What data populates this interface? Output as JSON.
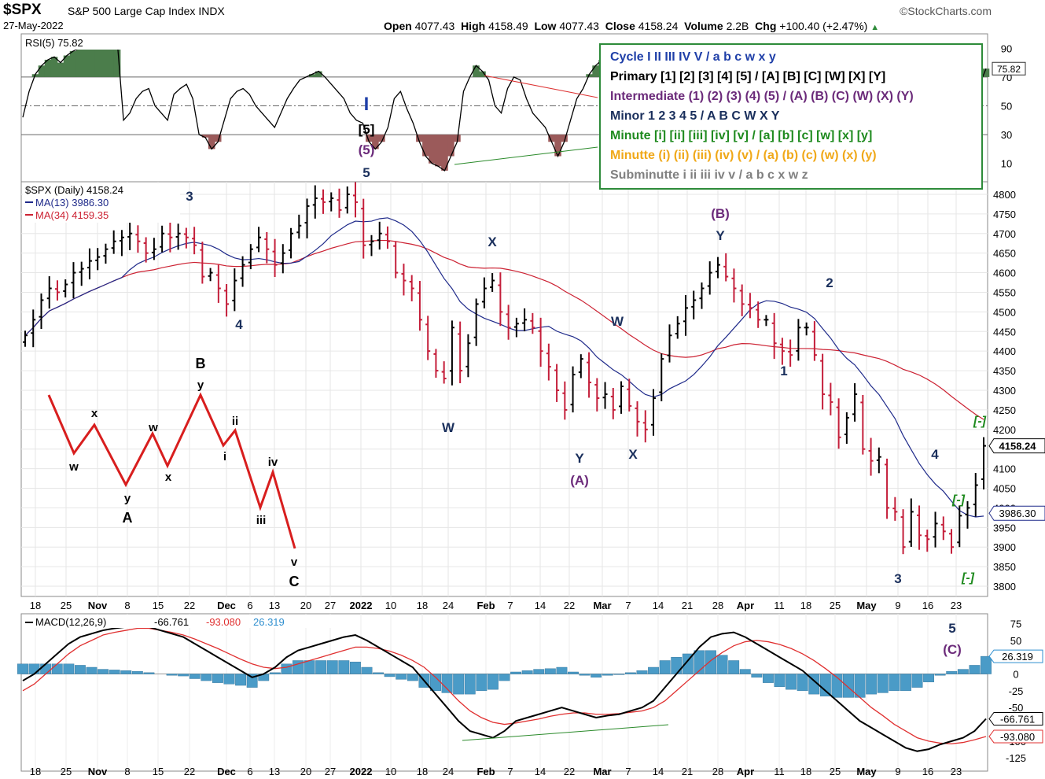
{
  "header": {
    "symbol": "$SPX",
    "name": "S&P 500 Large Cap Index",
    "exchange": "INDX",
    "date": "27-May-2022",
    "watermark": "©StockCharts.com",
    "open_label": "Open",
    "open": "4077.43",
    "high_label": "High",
    "high": "4158.49",
    "low_label": "Low",
    "low": "4077.43",
    "close_label": "Close",
    "close": "4158.24",
    "volume_label": "Volume",
    "volume": "2.2B",
    "chg_label": "Chg",
    "chg": "+100.40 (+2.47%)"
  },
  "legend": [
    {
      "text": "Cycle I II III IV V / a b c w x y",
      "color": "#1f3fa8"
    },
    {
      "text": "Primary [1] [2] [3] [4] [5] / [A] [B] [C] [W] [X] [Y]",
      "color": "#000000"
    },
    {
      "text": "Intermediate (1) (2) (3) (4) (5) / (A) (B) (C) (W) (X) (Y)",
      "color": "#6b2a7a"
    },
    {
      "text": "Minor 1 2 3 4 5 / A B C W X Y",
      "color": "#1a2f5c"
    },
    {
      "text": "Minute [i] [ii] [iii] [iv] [v] / [a] [b] [c] [w] [x] [y]",
      "color": "#1e8a1e"
    },
    {
      "text": "Minutte (i) (ii) (iii) (iv) (v) / (a) (b) (c) (w) (x) (y)",
      "color": "#f0a818"
    },
    {
      "text": "Subminutte i ii iii iv v / a b c x w z",
      "color": "#808080"
    }
  ],
  "chart_data": [
    {
      "type": "line",
      "panel": "RSI",
      "label": "RSI(5) 75.82",
      "last_value": "75.82",
      "ylim": [
        0,
        100
      ],
      "y_ticks": [
        "10",
        "30",
        "50",
        "70",
        "90"
      ],
      "reference_lines": [
        30,
        50,
        70
      ],
      "values": [
        42,
        60,
        72,
        78,
        82,
        84,
        80,
        85,
        88,
        90,
        92,
        95,
        96,
        97,
        96,
        95,
        40,
        45,
        55,
        60,
        62,
        50,
        45,
        40,
        58,
        62,
        65,
        55,
        30,
        28,
        20,
        25,
        40,
        55,
        60,
        62,
        58,
        50,
        45,
        40,
        35,
        45,
        55,
        62,
        68,
        70,
        72,
        74,
        70,
        65,
        60,
        55,
        45,
        40,
        38,
        25,
        20,
        25,
        35,
        55,
        60,
        48,
        38,
        25,
        15,
        10,
        8,
        5,
        15,
        25,
        60,
        70,
        78,
        74,
        68,
        50,
        45,
        62,
        70,
        68,
        55,
        45,
        40,
        35,
        25,
        15,
        25,
        40,
        55,
        62,
        72,
        78,
        82,
        84,
        86,
        88,
        90,
        85,
        80,
        75,
        70,
        60,
        55,
        45,
        35,
        30,
        25,
        20,
        30,
        40,
        55,
        62,
        68,
        72,
        65,
        58,
        55,
        45,
        40,
        35,
        30,
        28,
        35,
        45,
        55,
        60,
        62,
        58,
        55,
        50,
        45,
        50,
        55,
        58,
        60,
        62,
        58,
        55,
        50,
        45,
        40,
        35,
        30,
        28,
        35,
        40,
        38,
        35,
        32,
        30,
        40,
        55,
        65,
        75.82
      ]
    },
    {
      "type": "ohlc",
      "panel": "price",
      "label": "$SPX (Daily) 4158.24",
      "last_value": "4158.24",
      "ylim": [
        3780,
        4830
      ],
      "y_ticks": [
        "3800",
        "3850",
        "3900",
        "3950",
        "4000",
        "4050",
        "4100",
        "4150",
        "4200",
        "4250",
        "4300",
        "4350",
        "4400",
        "4450",
        "4500",
        "4550",
        "4600",
        "4650",
        "4700",
        "4750",
        "4800"
      ],
      "x_tick_labels": [
        "18",
        "25",
        "Nov",
        "8",
        "15",
        "22",
        "Dec",
        "6",
        "13",
        "20",
        "27",
        "2022",
        "10",
        "18",
        "24",
        "Feb",
        "7",
        "14",
        "22",
        "Mar",
        "7",
        "14",
        "21",
        "28",
        "Apr",
        "11",
        "18",
        "25",
        "May",
        "9",
        "16",
        "23"
      ],
      "close": [
        4440,
        4480,
        4530,
        4560,
        4550,
        4570,
        4600,
        4610,
        4630,
        4640,
        4660,
        4680,
        4690,
        4700,
        4680,
        4650,
        4660,
        4700,
        4690,
        4700,
        4690,
        4670,
        4590,
        4600,
        4560,
        4520,
        4580,
        4620,
        4660,
        4690,
        4660,
        4620,
        4650,
        4700,
        4720,
        4770,
        4790,
        4780,
        4790,
        4760,
        4800,
        4780,
        4670,
        4680,
        4700,
        4680,
        4600,
        4580,
        4560,
        4480,
        4400,
        4350,
        4330,
        4460,
        4350,
        4420,
        4520,
        4560,
        4580,
        4500,
        4460,
        4470,
        4480,
        4460,
        4400,
        4360,
        4300,
        4250,
        4340,
        4380,
        4320,
        4280,
        4290,
        4250,
        4310,
        4260,
        4220,
        4200,
        4280,
        4380,
        4440,
        4470,
        4510,
        4530,
        4560,
        4600,
        4620,
        4590,
        4560,
        4520,
        4510,
        4480,
        4480,
        4420,
        4400,
        4390,
        4460,
        4460,
        4390,
        4290,
        4270,
        4180,
        4230,
        4290,
        4150,
        4120,
        4130,
        4000,
        3990,
        3900,
        3990,
        3930,
        3920,
        3960,
        3940,
        3900,
        3980,
        4000,
        4058,
        4158.24
      ],
      "ma13": {
        "label": "MA(13) 3986.30",
        "last_value": "3986.30",
        "color": "#1f2a8a"
      },
      "ma34": {
        "label": "MA(34) 4159.35",
        "last_value": "4159.35",
        "color": "#cc2233"
      }
    },
    {
      "type": "line",
      "panel": "MACD",
      "label": "MACD(12,26,9)",
      "macd_value": "-66.761",
      "signal_value": "-93.080",
      "hist_value": "26.319",
      "ylim": [
        -140,
        85
      ],
      "y_ticks": [
        "75",
        "50",
        "25",
        "0",
        "-25",
        "-50",
        "-100",
        "-125"
      ],
      "macd": [
        -10,
        0,
        15,
        30,
        45,
        55,
        60,
        65,
        68,
        70,
        72,
        70,
        65,
        60,
        55,
        45,
        35,
        25,
        15,
        5,
        -5,
        0,
        10,
        25,
        35,
        40,
        45,
        50,
        55,
        58,
        50,
        40,
        30,
        20,
        10,
        -10,
        -30,
        -50,
        -70,
        -85,
        -90,
        -95,
        -85,
        -70,
        -65,
        -60,
        -55,
        -50,
        -55,
        -60,
        -65,
        -62,
        -60,
        -55,
        -50,
        -40,
        -20,
        0,
        20,
        40,
        55,
        60,
        62,
        55,
        45,
        35,
        25,
        15,
        5,
        -10,
        -25,
        -40,
        -55,
        -70,
        -80,
        -90,
        -100,
        -110,
        -115,
        -112,
        -105,
        -100,
        -95,
        -85,
        -66.761
      ],
      "signal": [
        -25,
        -15,
        0,
        15,
        30,
        42,
        50,
        58,
        62,
        65,
        68,
        68,
        65,
        62,
        58,
        52,
        45,
        38,
        30,
        22,
        15,
        10,
        8,
        10,
        15,
        20,
        25,
        30,
        35,
        40,
        40,
        38,
        34,
        28,
        20,
        10,
        -5,
        -22,
        -40,
        -55,
        -65,
        -72,
        -75,
        -73,
        -70,
        -67,
        -63,
        -60,
        -58,
        -58,
        -60,
        -60,
        -59,
        -57,
        -55,
        -50,
        -40,
        -25,
        -10,
        5,
        20,
        32,
        42,
        48,
        50,
        48,
        44,
        38,
        30,
        20,
        8,
        -5,
        -20,
        -35,
        -50,
        -62,
        -75,
        -85,
        -95,
        -100,
        -103,
        -104,
        -102,
        -98,
        -93.08
      ]
    }
  ],
  "annotations": {
    "wave_labels": [
      {
        "text": "I",
        "color": "#1f3fa8"
      },
      {
        "text": "[5]",
        "color": "#000000"
      },
      {
        "text": "(5)",
        "color": "#6b2a7a"
      },
      {
        "text": "5",
        "color": "#1a2f5c"
      },
      {
        "text": "3",
        "color": "#1a2f5c"
      },
      {
        "text": "4",
        "color": "#1a2f5c"
      },
      {
        "text": "W",
        "color": "#1a2f5c"
      },
      {
        "text": "X",
        "color": "#1a2f5c"
      },
      {
        "text": "Y",
        "color": "#1a2f5c"
      },
      {
        "text": "(A)",
        "color": "#6b2a7a"
      },
      {
        "text": "W",
        "color": "#1a2f5c"
      },
      {
        "text": "X",
        "color": "#1a2f5c"
      },
      {
        "text": "(B)",
        "color": "#6b2a7a"
      },
      {
        "text": "Y",
        "color": "#1a2f5c"
      },
      {
        "text": "1",
        "color": "#1a2f5c"
      },
      {
        "text": "2",
        "color": "#1a2f5c"
      },
      {
        "text": "3",
        "color": "#1a2f5c"
      },
      {
        "text": "4",
        "color": "#1a2f5c"
      },
      {
        "text": "5",
        "color": "#1a2f5c"
      },
      {
        "text": "(C)",
        "color": "#6b2a7a"
      },
      {
        "text": "[-]",
        "color": "#1e8a1e"
      },
      {
        "text": "[-]",
        "color": "#1e8a1e"
      },
      {
        "text": "[-]",
        "color": "#1e8a1e"
      }
    ],
    "schematic_labels": [
      "w",
      "x",
      "y",
      "A",
      "w",
      "x",
      "B",
      "y",
      "i",
      "ii",
      "iii",
      "iv",
      "v",
      "C"
    ]
  }
}
